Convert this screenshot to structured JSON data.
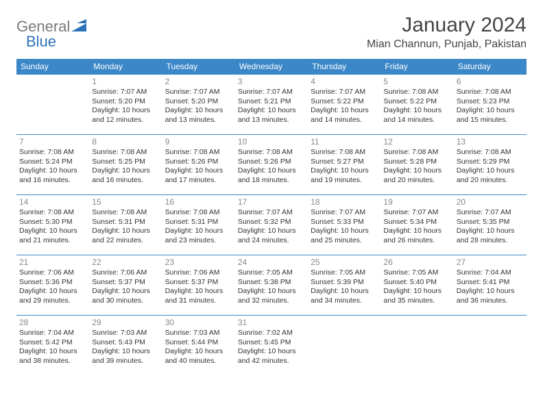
{
  "logo": {
    "text1": "General",
    "text2": "Blue"
  },
  "title": "January 2024",
  "location": "Mian Channun, Punjab, Pakistan",
  "dayHeaders": [
    "Sunday",
    "Monday",
    "Tuesday",
    "Wednesday",
    "Thursday",
    "Friday",
    "Saturday"
  ],
  "colors": {
    "headerBg": "#3b87c8",
    "headerText": "#ffffff",
    "borderTop": "#3b87c8",
    "dayNum": "#888888",
    "bodyText": "#333333",
    "logoGray": "#7a7a7a",
    "logoBlue": "#2d72b8"
  },
  "weeks": [
    [
      {
        "n": "",
        "sr": "",
        "ss": "",
        "dl": ""
      },
      {
        "n": "1",
        "sr": "Sunrise: 7:07 AM",
        "ss": "Sunset: 5:20 PM",
        "dl": "Daylight: 10 hours and 12 minutes."
      },
      {
        "n": "2",
        "sr": "Sunrise: 7:07 AM",
        "ss": "Sunset: 5:20 PM",
        "dl": "Daylight: 10 hours and 13 minutes."
      },
      {
        "n": "3",
        "sr": "Sunrise: 7:07 AM",
        "ss": "Sunset: 5:21 PM",
        "dl": "Daylight: 10 hours and 13 minutes."
      },
      {
        "n": "4",
        "sr": "Sunrise: 7:07 AM",
        "ss": "Sunset: 5:22 PM",
        "dl": "Daylight: 10 hours and 14 minutes."
      },
      {
        "n": "5",
        "sr": "Sunrise: 7:08 AM",
        "ss": "Sunset: 5:22 PM",
        "dl": "Daylight: 10 hours and 14 minutes."
      },
      {
        "n": "6",
        "sr": "Sunrise: 7:08 AM",
        "ss": "Sunset: 5:23 PM",
        "dl": "Daylight: 10 hours and 15 minutes."
      }
    ],
    [
      {
        "n": "7",
        "sr": "Sunrise: 7:08 AM",
        "ss": "Sunset: 5:24 PM",
        "dl": "Daylight: 10 hours and 16 minutes."
      },
      {
        "n": "8",
        "sr": "Sunrise: 7:08 AM",
        "ss": "Sunset: 5:25 PM",
        "dl": "Daylight: 10 hours and 16 minutes."
      },
      {
        "n": "9",
        "sr": "Sunrise: 7:08 AM",
        "ss": "Sunset: 5:26 PM",
        "dl": "Daylight: 10 hours and 17 minutes."
      },
      {
        "n": "10",
        "sr": "Sunrise: 7:08 AM",
        "ss": "Sunset: 5:26 PM",
        "dl": "Daylight: 10 hours and 18 minutes."
      },
      {
        "n": "11",
        "sr": "Sunrise: 7:08 AM",
        "ss": "Sunset: 5:27 PM",
        "dl": "Daylight: 10 hours and 19 minutes."
      },
      {
        "n": "12",
        "sr": "Sunrise: 7:08 AM",
        "ss": "Sunset: 5:28 PM",
        "dl": "Daylight: 10 hours and 20 minutes."
      },
      {
        "n": "13",
        "sr": "Sunrise: 7:08 AM",
        "ss": "Sunset: 5:29 PM",
        "dl": "Daylight: 10 hours and 20 minutes."
      }
    ],
    [
      {
        "n": "14",
        "sr": "Sunrise: 7:08 AM",
        "ss": "Sunset: 5:30 PM",
        "dl": "Daylight: 10 hours and 21 minutes."
      },
      {
        "n": "15",
        "sr": "Sunrise: 7:08 AM",
        "ss": "Sunset: 5:31 PM",
        "dl": "Daylight: 10 hours and 22 minutes."
      },
      {
        "n": "16",
        "sr": "Sunrise: 7:08 AM",
        "ss": "Sunset: 5:31 PM",
        "dl": "Daylight: 10 hours and 23 minutes."
      },
      {
        "n": "17",
        "sr": "Sunrise: 7:07 AM",
        "ss": "Sunset: 5:32 PM",
        "dl": "Daylight: 10 hours and 24 minutes."
      },
      {
        "n": "18",
        "sr": "Sunrise: 7:07 AM",
        "ss": "Sunset: 5:33 PM",
        "dl": "Daylight: 10 hours and 25 minutes."
      },
      {
        "n": "19",
        "sr": "Sunrise: 7:07 AM",
        "ss": "Sunset: 5:34 PM",
        "dl": "Daylight: 10 hours and 26 minutes."
      },
      {
        "n": "20",
        "sr": "Sunrise: 7:07 AM",
        "ss": "Sunset: 5:35 PM",
        "dl": "Daylight: 10 hours and 28 minutes."
      }
    ],
    [
      {
        "n": "21",
        "sr": "Sunrise: 7:06 AM",
        "ss": "Sunset: 5:36 PM",
        "dl": "Daylight: 10 hours and 29 minutes."
      },
      {
        "n": "22",
        "sr": "Sunrise: 7:06 AM",
        "ss": "Sunset: 5:37 PM",
        "dl": "Daylight: 10 hours and 30 minutes."
      },
      {
        "n": "23",
        "sr": "Sunrise: 7:06 AM",
        "ss": "Sunset: 5:37 PM",
        "dl": "Daylight: 10 hours and 31 minutes."
      },
      {
        "n": "24",
        "sr": "Sunrise: 7:05 AM",
        "ss": "Sunset: 5:38 PM",
        "dl": "Daylight: 10 hours and 32 minutes."
      },
      {
        "n": "25",
        "sr": "Sunrise: 7:05 AM",
        "ss": "Sunset: 5:39 PM",
        "dl": "Daylight: 10 hours and 34 minutes."
      },
      {
        "n": "26",
        "sr": "Sunrise: 7:05 AM",
        "ss": "Sunset: 5:40 PM",
        "dl": "Daylight: 10 hours and 35 minutes."
      },
      {
        "n": "27",
        "sr": "Sunrise: 7:04 AM",
        "ss": "Sunset: 5:41 PM",
        "dl": "Daylight: 10 hours and 36 minutes."
      }
    ],
    [
      {
        "n": "28",
        "sr": "Sunrise: 7:04 AM",
        "ss": "Sunset: 5:42 PM",
        "dl": "Daylight: 10 hours and 38 minutes."
      },
      {
        "n": "29",
        "sr": "Sunrise: 7:03 AM",
        "ss": "Sunset: 5:43 PM",
        "dl": "Daylight: 10 hours and 39 minutes."
      },
      {
        "n": "30",
        "sr": "Sunrise: 7:03 AM",
        "ss": "Sunset: 5:44 PM",
        "dl": "Daylight: 10 hours and 40 minutes."
      },
      {
        "n": "31",
        "sr": "Sunrise: 7:02 AM",
        "ss": "Sunset: 5:45 PM",
        "dl": "Daylight: 10 hours and 42 minutes."
      },
      {
        "n": "",
        "sr": "",
        "ss": "",
        "dl": ""
      },
      {
        "n": "",
        "sr": "",
        "ss": "",
        "dl": ""
      },
      {
        "n": "",
        "sr": "",
        "ss": "",
        "dl": ""
      }
    ]
  ]
}
